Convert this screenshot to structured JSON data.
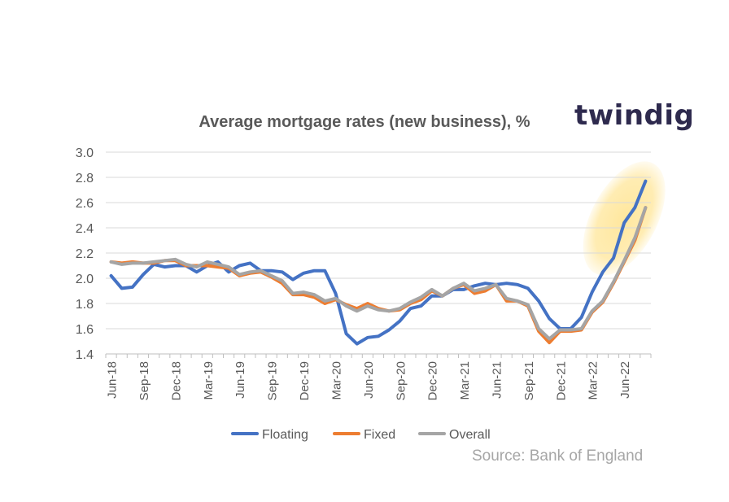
{
  "brand": {
    "name": "twindig"
  },
  "source": "Source: Bank of England",
  "chart_data": {
    "type": "line",
    "title": "Average mortgage rates (new business), %",
    "xlabel": "",
    "ylabel": "",
    "ylim": [
      1.4,
      3.0
    ],
    "yticks": [
      "3.0",
      "2.8",
      "2.6",
      "2.4",
      "2.2",
      "2.0",
      "1.8",
      "1.6",
      "1.4"
    ],
    "xtick_labels": [
      "Jun-18",
      "Sep-18",
      "Dec-18",
      "Mar-19",
      "Jun-19",
      "Sep-19",
      "Dec-19",
      "Mar-20",
      "Jun-20",
      "Sep-20",
      "Dec-20",
      "Mar-21",
      "Jun-21",
      "Sep-21",
      "Dec-21",
      "Mar-22",
      "Jun-22"
    ],
    "x": [
      "Jun-18",
      "Jul-18",
      "Aug-18",
      "Sep-18",
      "Oct-18",
      "Nov-18",
      "Dec-18",
      "Jan-19",
      "Feb-19",
      "Mar-19",
      "Apr-19",
      "May-19",
      "Jun-19",
      "Jul-19",
      "Aug-19",
      "Sep-19",
      "Oct-19",
      "Nov-19",
      "Dec-19",
      "Jan-20",
      "Feb-20",
      "Mar-20",
      "Apr-20",
      "May-20",
      "Jun-20",
      "Jul-20",
      "Aug-20",
      "Sep-20",
      "Oct-20",
      "Nov-20",
      "Dec-20",
      "Jan-21",
      "Feb-21",
      "Mar-21",
      "Apr-21",
      "May-21",
      "Jun-21",
      "Jul-21",
      "Aug-21",
      "Sep-21",
      "Oct-21",
      "Nov-21",
      "Dec-21",
      "Jan-22",
      "Feb-22",
      "Mar-22",
      "Apr-22",
      "May-22",
      "Jun-22",
      "Jul-22",
      "Aug-22"
    ],
    "series": [
      {
        "name": "Floating",
        "color": "#4472c4",
        "values": [
          2.02,
          1.92,
          1.93,
          2.03,
          2.11,
          2.09,
          2.1,
          2.1,
          2.05,
          2.1,
          2.13,
          2.05,
          2.1,
          2.12,
          2.06,
          2.06,
          2.05,
          1.99,
          2.04,
          2.06,
          2.06,
          1.88,
          1.56,
          1.48,
          1.53,
          1.54,
          1.59,
          1.66,
          1.76,
          1.78,
          1.86,
          1.86,
          1.91,
          1.91,
          1.94,
          1.96,
          1.95,
          1.96,
          1.95,
          1.92,
          1.82,
          1.68,
          1.6,
          1.6,
          1.69,
          1.89,
          2.05,
          2.16,
          2.44,
          2.56,
          2.77
        ]
      },
      {
        "name": "Fixed",
        "color": "#ed7d31",
        "values": [
          2.13,
          2.12,
          2.13,
          2.12,
          2.12,
          2.14,
          2.14,
          2.1,
          2.1,
          2.1,
          2.09,
          2.08,
          2.02,
          2.04,
          2.05,
          2.01,
          1.96,
          1.87,
          1.87,
          1.85,
          1.8,
          1.83,
          1.79,
          1.76,
          1.8,
          1.76,
          1.74,
          1.75,
          1.8,
          1.83,
          1.9,
          1.86,
          1.92,
          1.95,
          1.88,
          1.9,
          1.95,
          1.82,
          1.82,
          1.78,
          1.58,
          1.49,
          1.58,
          1.58,
          1.59,
          1.73,
          1.81,
          1.96,
          2.13,
          2.3,
          2.56
        ]
      },
      {
        "name": "Overall",
        "color": "#a5a5a5",
        "values": [
          2.13,
          2.11,
          2.12,
          2.12,
          2.13,
          2.14,
          2.15,
          2.11,
          2.09,
          2.13,
          2.11,
          2.09,
          2.03,
          2.05,
          2.06,
          2.02,
          1.98,
          1.88,
          1.89,
          1.87,
          1.82,
          1.84,
          1.78,
          1.74,
          1.78,
          1.75,
          1.74,
          1.76,
          1.81,
          1.85,
          1.91,
          1.86,
          1.92,
          1.96,
          1.9,
          1.92,
          1.95,
          1.84,
          1.82,
          1.79,
          1.6,
          1.52,
          1.59,
          1.59,
          1.6,
          1.74,
          1.82,
          1.97,
          2.14,
          2.32,
          2.56
        ]
      }
    ],
    "highlight_ellipse": {
      "color": "#ffe699",
      "x_from": "Apr-22",
      "x_to": "Aug-22",
      "y_from": 2.15,
      "y_to": 2.8
    },
    "grid": true,
    "legend": "bottom-center"
  }
}
